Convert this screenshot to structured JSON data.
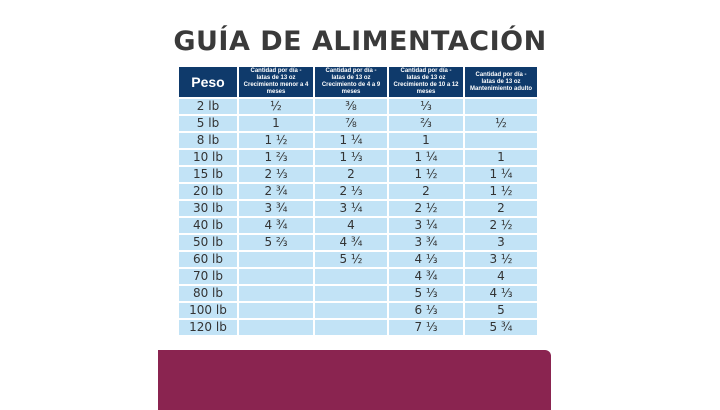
{
  "title": "GUÍA DE ALIMENTACIÓN",
  "table": {
    "headers": {
      "peso": "Peso",
      "col1": [
        "Cantidad por día -",
        "latas de 13 oz",
        "Crecimiento menor a 4 meses"
      ],
      "col2": [
        "Cantidad por día -",
        "latas de 13 oz",
        "Crecimiento de 4 a 9 meses"
      ],
      "col3": [
        "Cantidad por día -",
        "latas de 13 oz",
        "Crecimiento de 10 a 12 meses"
      ],
      "col4": [
        "Cantidad por día -",
        "latas de 13 oz",
        "Mantenimiento adulto"
      ]
    },
    "rows": [
      {
        "peso": "2 lb",
        "c1": "½",
        "c2": "⅜",
        "c3": "⅓",
        "c4": ""
      },
      {
        "peso": "5 lb",
        "c1": "1",
        "c2": "⅞",
        "c3": "⅔",
        "c4": "½"
      },
      {
        "peso": "8 lb",
        "c1": "1 ½",
        "c2": "1 ¼",
        "c3": "1",
        "c4": ""
      },
      {
        "peso": "10 lb",
        "c1": "1 ⅔",
        "c2": "1 ⅓",
        "c3": "1 ¼",
        "c4": "1"
      },
      {
        "peso": "15 lb",
        "c1": "2 ⅓",
        "c2": "2",
        "c3": "1 ½",
        "c4": "1 ¼"
      },
      {
        "peso": "20 lb",
        "c1": "2 ¾",
        "c2": "2 ⅓",
        "c3": "2",
        "c4": "1 ½"
      },
      {
        "peso": "30 lb",
        "c1": "3 ¾",
        "c2": "3 ¼",
        "c3": "2 ½",
        "c4": "2"
      },
      {
        "peso": "40 lb",
        "c1": "4 ¾",
        "c2": "4",
        "c3": "3 ¼",
        "c4": "2 ½"
      },
      {
        "peso": "50 lb",
        "c1": "5 ⅔",
        "c2": "4 ¾",
        "c3": "3 ¾",
        "c4": "3"
      },
      {
        "peso": "60 lb",
        "c1": "",
        "c2": "5 ½",
        "c3": "4 ⅓",
        "c4": "3 ½"
      },
      {
        "peso": "70 lb",
        "c1": "",
        "c2": "",
        "c3": "4 ¾",
        "c4": "4"
      },
      {
        "peso": "80 lb",
        "c1": "",
        "c2": "",
        "c3": "5 ⅓",
        "c4": "4 ⅓"
      },
      {
        "peso": "100 lb",
        "c1": "",
        "c2": "",
        "c3": "6 ⅓",
        "c4": "5"
      },
      {
        "peso": "120 lb",
        "c1": "",
        "c2": "",
        "c3": "7 ⅓",
        "c4": "5 ¾"
      }
    ]
  },
  "colors": {
    "header_bg": "#0f3a6b",
    "cell_bg": "#c2e3f6",
    "title_text": "#3a3a3a",
    "footer_band": "#8a2450"
  }
}
